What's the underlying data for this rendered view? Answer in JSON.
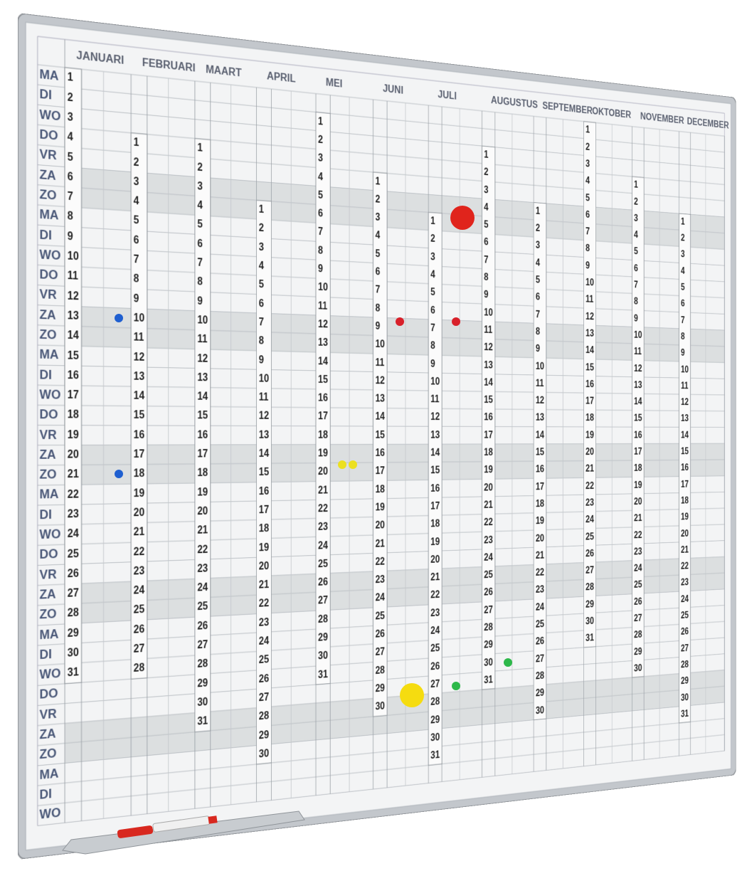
{
  "weekdays": [
    "MA",
    "DI",
    "WO",
    "DO",
    "VR",
    "ZA",
    "ZO",
    "MA",
    "DI",
    "WO",
    "DO",
    "VR",
    "ZA",
    "ZO",
    "MA",
    "DI",
    "WO",
    "DO",
    "VR",
    "ZA",
    "ZO",
    "MA",
    "DI",
    "WO",
    "DO",
    "VR",
    "ZA",
    "ZO",
    "MA",
    "DI",
    "WO",
    "DO",
    "VR",
    "ZA",
    "ZO",
    "MA",
    "DI",
    "WO"
  ],
  "months": [
    {
      "name": "JANUARI",
      "days": [
        1,
        2,
        3,
        4,
        5,
        6,
        7,
        8,
        9,
        10,
        11,
        12,
        13,
        14,
        15,
        16,
        17,
        18,
        19,
        20,
        21,
        22,
        23,
        24,
        25,
        26,
        27,
        28,
        29,
        30,
        31
      ]
    },
    {
      "name": "FEBRUARI",
      "days": [
        1,
        2,
        3,
        4,
        5,
        6,
        7,
        8,
        9,
        10,
        11,
        12,
        13,
        14,
        15,
        16,
        17,
        18,
        19,
        20,
        21,
        22,
        23,
        24,
        25,
        26,
        27,
        28
      ]
    },
    {
      "name": "MAART",
      "days": [
        1,
        2,
        3,
        4,
        5,
        6,
        7,
        8,
        9,
        10,
        11,
        12,
        13,
        14,
        15,
        16,
        17,
        18,
        19,
        20,
        21,
        22,
        23,
        24,
        25,
        26,
        27,
        28,
        29,
        30,
        31
      ]
    },
    {
      "name": "APRIL",
      "days": [
        1,
        2,
        3,
        4,
        5,
        6,
        7,
        8,
        9,
        10,
        11,
        12,
        13,
        14,
        15,
        16,
        17,
        18,
        19,
        20,
        21,
        22,
        23,
        24,
        25,
        26,
        27,
        28,
        29,
        30
      ]
    },
    {
      "name": "MEI",
      "days": [
        1,
        2,
        3,
        4,
        5,
        6,
        7,
        8,
        9,
        10,
        11,
        12,
        13,
        14,
        15,
        16,
        17,
        18,
        19,
        20,
        21,
        22,
        23,
        24,
        25,
        26,
        27,
        28,
        29,
        30,
        31
      ]
    },
    {
      "name": "JUNI",
      "days": [
        1,
        2,
        3,
        4,
        5,
        6,
        7,
        8,
        9,
        10,
        11,
        12,
        13,
        14,
        15,
        16,
        17,
        18,
        19,
        20,
        21,
        22,
        23,
        24,
        25,
        26,
        27,
        28,
        29,
        30
      ]
    },
    {
      "name": "JULI",
      "days": [
        1,
        2,
        3,
        4,
        5,
        6,
        7,
        8,
        9,
        10,
        11,
        12,
        13,
        14,
        15,
        16,
        17,
        18,
        19,
        20,
        21,
        22,
        23,
        24,
        25,
        26,
        27,
        28,
        29,
        30,
        31
      ]
    },
    {
      "name": "AUGUSTUS",
      "days": [
        1,
        2,
        3,
        4,
        5,
        6,
        7,
        8,
        9,
        10,
        11,
        12,
        13,
        14,
        15,
        16,
        17,
        18,
        19,
        20,
        21,
        22,
        23,
        24,
        25,
        26,
        27,
        28,
        29,
        30,
        31
      ]
    },
    {
      "name": "SEPTEMBER",
      "days": [
        1,
        2,
        3,
        4,
        5,
        6,
        7,
        8,
        9,
        10,
        11,
        12,
        13,
        14,
        15,
        16,
        17,
        18,
        19,
        20,
        21,
        22,
        23,
        24,
        25,
        26,
        27,
        28,
        29,
        30
      ]
    },
    {
      "name": "OKTOBER",
      "days": [
        1,
        2,
        3,
        4,
        5,
        6,
        7,
        8,
        9,
        10,
        11,
        12,
        13,
        14,
        15,
        16,
        17,
        18,
        19,
        20,
        21,
        22,
        23,
        24,
        25,
        26,
        27,
        28,
        29,
        30,
        31
      ]
    },
    {
      "name": "NOVEMBER",
      "days": [
        1,
        2,
        3,
        4,
        5,
        6,
        7,
        8,
        9,
        10,
        11,
        12,
        13,
        14,
        15,
        16,
        17,
        18,
        19,
        20,
        21,
        22,
        23,
        24,
        25,
        26,
        27,
        28,
        29,
        30
      ]
    },
    {
      "name": "DECEMBER",
      "days": [
        1,
        2,
        3,
        4,
        5,
        6,
        7,
        8,
        9,
        10,
        11,
        12,
        13,
        14,
        15,
        16,
        17,
        18,
        19,
        20,
        21,
        22,
        23,
        24,
        25,
        26,
        27,
        28,
        29,
        30,
        31
      ]
    }
  ]
}
